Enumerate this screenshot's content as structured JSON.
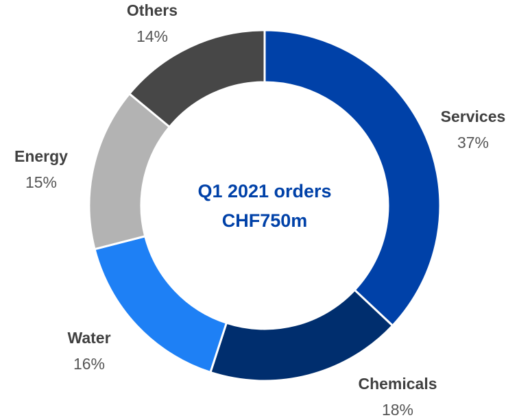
{
  "chart_data": {
    "type": "donut",
    "center_text": [
      "Q1 2021 orders",
      "CHF750m"
    ],
    "categories": [
      "Services",
      "Chemicals",
      "Water",
      "Energy",
      "Others"
    ],
    "values": [
      37,
      18,
      16,
      15,
      14
    ],
    "value_labels": [
      "37%",
      "18%",
      "16%",
      "15%",
      "14%"
    ],
    "colors": [
      "#0041a8",
      "#002e6e",
      "#1e80f5",
      "#b3b3b3",
      "#474747"
    ]
  }
}
